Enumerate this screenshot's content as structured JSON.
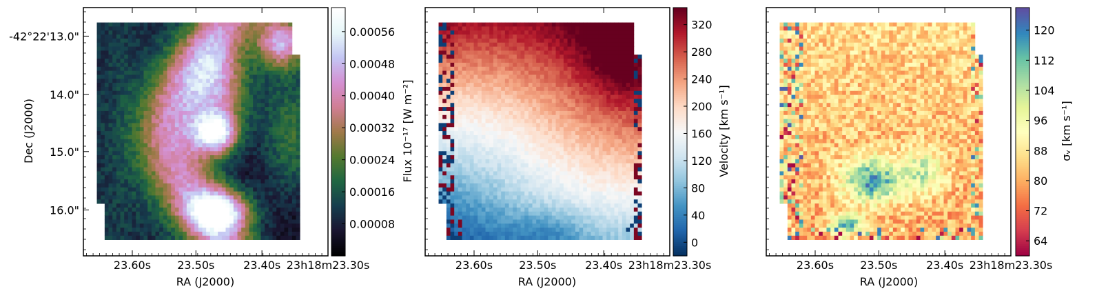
{
  "chart_data": [
    {
      "type": "heatmap",
      "xlabel": "RA (J2000)",
      "ylabel": "Dec (J2000)",
      "x_ticks": [
        "23.60s",
        "23.50s",
        "23.40s",
        "23h18m23.30s"
      ],
      "y_ticks": [
        "-42°22'13.0\"",
        "14.0\"",
        "15.0\"",
        "16.0\""
      ],
      "colorbar": {
        "label": "Flux 10⁻¹⁷ [W m⁻²]",
        "ticks": [
          "0.00008",
          "0.00016",
          "0.00024",
          "0.00032",
          "0.00040",
          "0.00048",
          "0.00056"
        ],
        "range": [
          0.0,
          0.00062
        ],
        "colormap": "cubehelix",
        "colors": [
          "#000000",
          "#1a1530",
          "#163d4e",
          "#1f6642",
          "#54792f",
          "#a07949",
          "#d07e93",
          "#d490d2",
          "#c3c5f3",
          "#e6f6f9",
          "#ffffff"
        ]
      }
    },
    {
      "type": "heatmap",
      "xlabel": "RA (J2000)",
      "x_ticks": [
        "23.60s",
        "23.50s",
        "23.40s",
        "23h18m23.30s"
      ],
      "colorbar": {
        "label": "Velocity [km s⁻¹]",
        "ticks": [
          "0",
          "40",
          "80",
          "120",
          "160",
          "200",
          "240",
          "280",
          "320"
        ],
        "range": [
          -20,
          345
        ],
        "colormap": "RdBu_r",
        "colors": [
          "#053061",
          "#2166ac",
          "#4393c3",
          "#92c5de",
          "#d1e5f0",
          "#f7f7f7",
          "#fddbc7",
          "#f4a582",
          "#d6604d",
          "#b2182b",
          "#67001f"
        ]
      }
    },
    {
      "type": "heatmap",
      "xlabel": "RA (J2000)",
      "x_ticks": [
        "23.60s",
        "23.50s",
        "23.40s",
        "23h18m23.30s"
      ],
      "colorbar": {
        "label": "σᵥ [km s⁻¹]",
        "ticks": [
          "64",
          "72",
          "80",
          "88",
          "96",
          "104",
          "112",
          "120"
        ],
        "range": [
          60,
          126
        ],
        "colormap": "Spectral",
        "colors": [
          "#9e0142",
          "#d53e4f",
          "#f46d43",
          "#fdae61",
          "#fee08b",
          "#ffffbf",
          "#e6f598",
          "#abdda4",
          "#66c2a5",
          "#3288bd",
          "#5e4fa2"
        ]
      }
    }
  ]
}
